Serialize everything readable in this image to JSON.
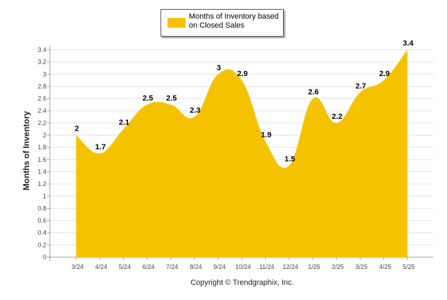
{
  "legend": {
    "label": "Months of Inventory based on Closed Sales"
  },
  "footer": {
    "copyright": "Copyright © Trendgraphix, Inc."
  },
  "colors": {
    "series": "#F5C200",
    "grid": "#e2e2e2",
    "axis": "#9c9c9c"
  },
  "chart_data": {
    "type": "area",
    "title": "",
    "xlabel": "",
    "ylabel": "Months of Inventory",
    "ylim": [
      0,
      3.4
    ],
    "ytick_step": 0.2,
    "grid": true,
    "legend_position": "top-center",
    "categories": [
      "3/24",
      "4/24",
      "5/24",
      "6/24",
      "7/24",
      "8/24",
      "9/24",
      "10/24",
      "11/24",
      "12/24",
      "1/25",
      "2/25",
      "3/25",
      "4/25",
      "5/25"
    ],
    "series": [
      {
        "name": "Months of Inventory based on Closed Sales",
        "values": [
          2,
          1.7,
          2.1,
          2.5,
          2.5,
          2.3,
          3,
          2.9,
          1.9,
          1.5,
          2.6,
          2.2,
          2.7,
          2.9,
          3.4
        ]
      }
    ]
  }
}
